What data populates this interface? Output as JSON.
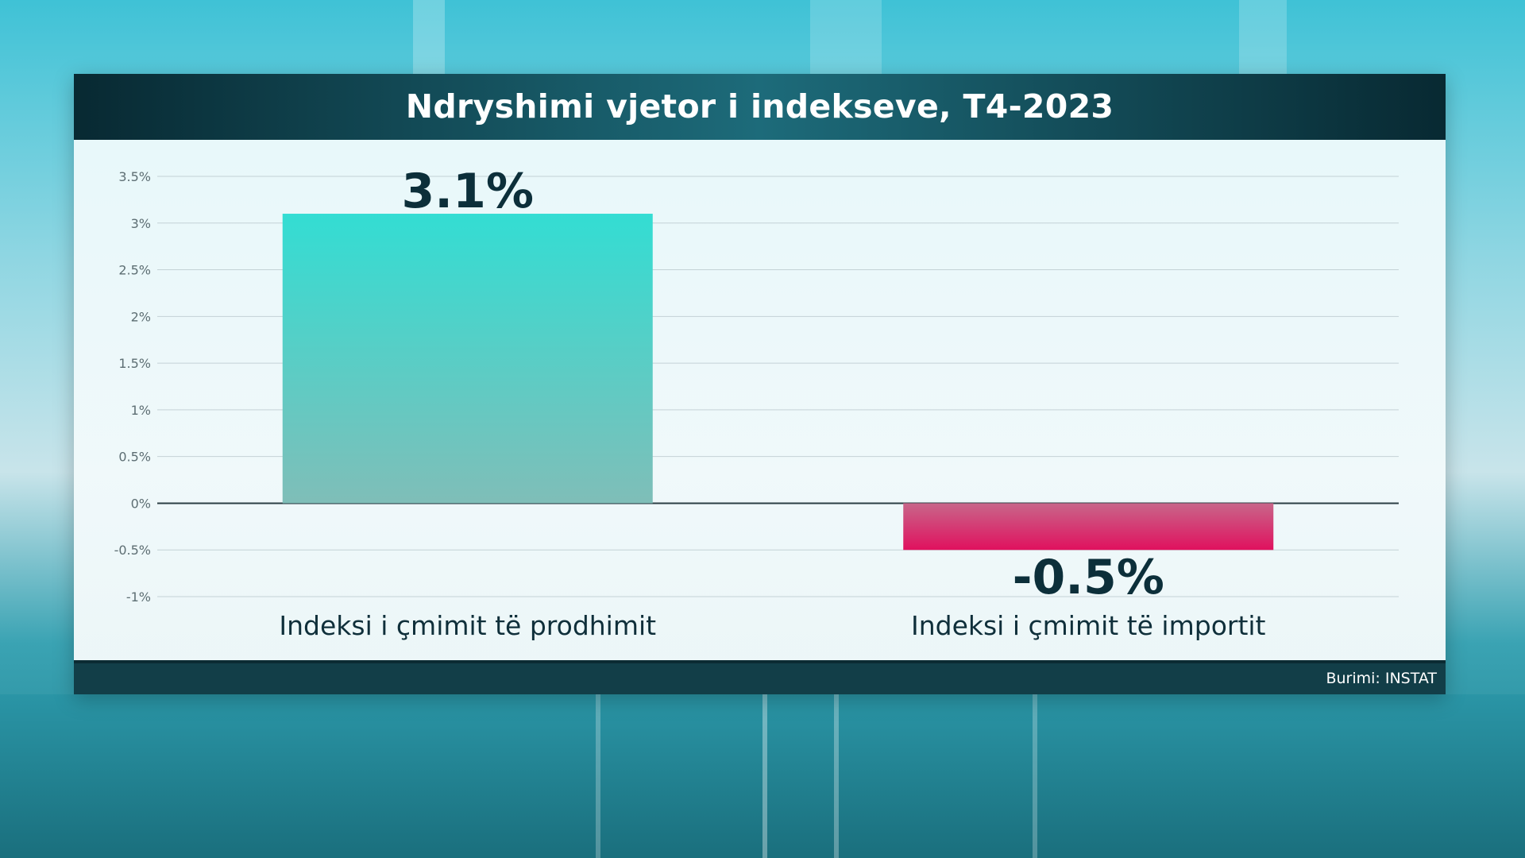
{
  "chart_data": {
    "type": "bar",
    "title": "Ndryshimi vjetor i indekseve, T4-2023",
    "categories": [
      "Indeksi i çmimit të prodhimit",
      "Indeksi i çmimit të importit"
    ],
    "values": [
      3.1,
      -0.5
    ],
    "data_labels": [
      "3.1%",
      "-0.5%"
    ],
    "ylim": [
      -1,
      3.5
    ],
    "yticks": [
      3.5,
      3,
      2.5,
      2,
      1.5,
      1,
      0.5,
      0,
      -0.5,
      -1
    ],
    "ytick_labels": [
      "3.5%",
      "3%",
      "2.5%",
      "2%",
      "1.5%",
      "1%",
      "0.5%",
      "0%",
      "-0.5%",
      "-1%"
    ],
    "grid": true,
    "bar_colors": [
      "#3ed6cc",
      "#e21a63"
    ],
    "source": "Burimi: INSTAT"
  }
}
